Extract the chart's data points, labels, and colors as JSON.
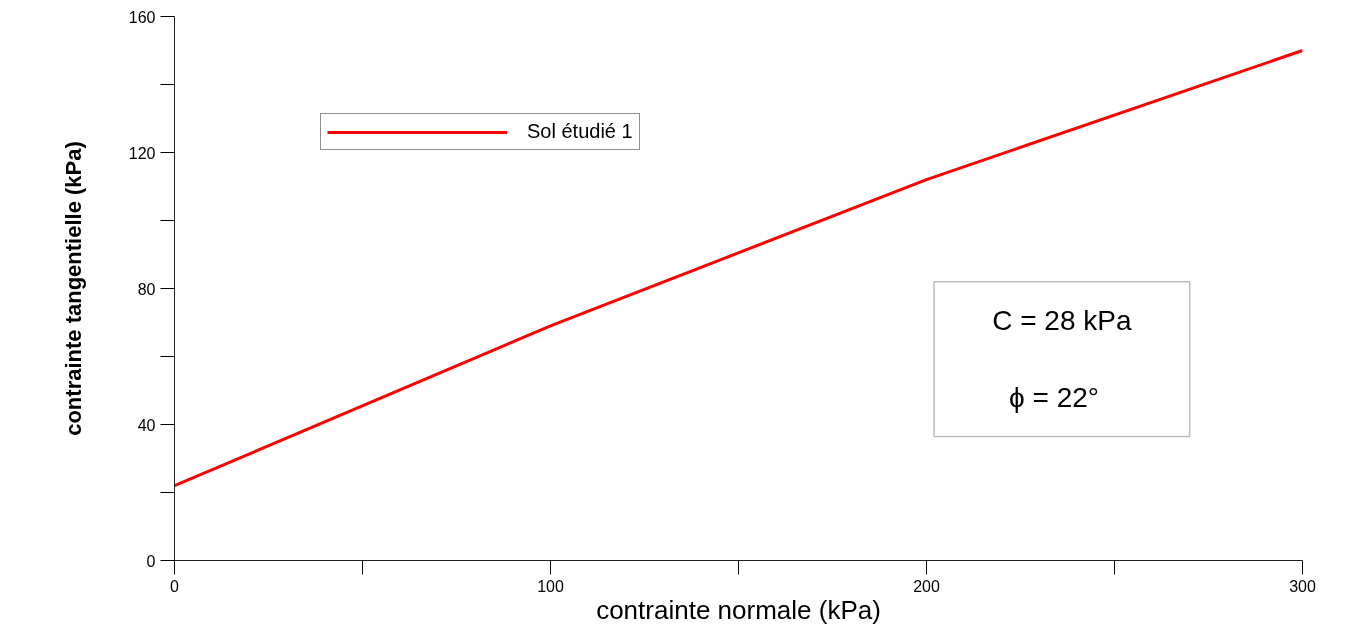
{
  "chart_data": {
    "type": "line",
    "xlabel": "contrainte normale (kPa)",
    "ylabel": "contrainte tangentielle (kPa)",
    "x": [
      0,
      100,
      200,
      300
    ],
    "series": [
      {
        "name": "Sol étudié 1",
        "color": "#ff0000",
        "values": [
          22,
          69,
          112,
          150
        ]
      }
    ],
    "xlim": [
      0,
      300
    ],
    "xticks": [
      0,
      {
        "value": 50,
        "label": null
      },
      100,
      {
        "value": 150,
        "label": null
      },
      200,
      {
        "value": 250,
        "label": null
      },
      300
    ],
    "ylim": [
      0,
      160
    ],
    "yticks": [
      0,
      {
        "value": 20,
        "label": null
      },
      40,
      {
        "value": 60,
        "label": null
      },
      80,
      {
        "value": 100,
        "label": null
      },
      120,
      {
        "value": 140,
        "label": null
      },
      160
    ],
    "annotations": [
      "C = 28 kPa",
      "ϕ  =  22°"
    ],
    "legend": "top left",
    "grid": false,
    "line_style": "solid"
  }
}
